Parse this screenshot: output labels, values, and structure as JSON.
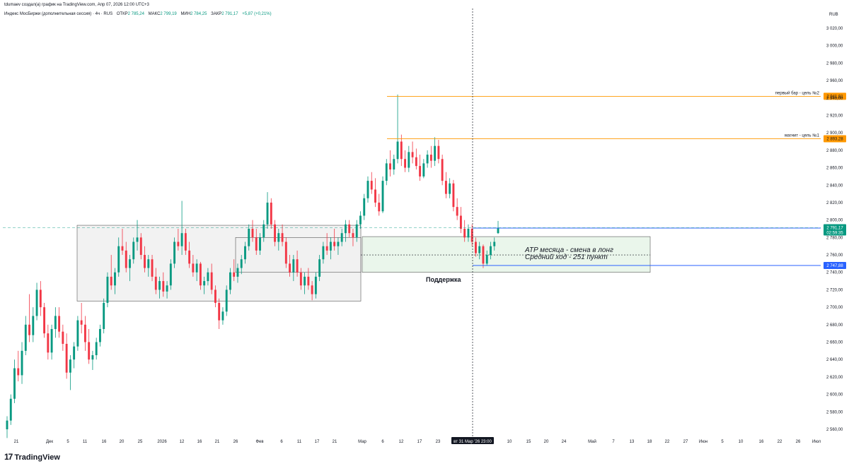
{
  "header": {
    "credit": "tdumaev создал(а) график на TradingView.com, Апр 07, 2026 12:00 UTC+3",
    "instrument": "Индекс МосБиржи (дополнительная сессия) · 4ч · RUS",
    "open_label": "ОТКР",
    "open_value": "2 785,24",
    "high_label": "МАКС",
    "high_value": "2 799,19",
    "low_label": "МИН",
    "low_value": "2 784,25",
    "close_label": "ЗАКР",
    "close_value": "2 791,17",
    "change": "+5,87 (+0,21%)"
  },
  "branding": {
    "logo_mark": "17",
    "logo_text": "TradingView"
  },
  "colors": {
    "up": "#089981",
    "down": "#f23645",
    "orange": "#ff9800",
    "blue": "#2962ff",
    "gray_zone": "#f0f0f0",
    "green_zone": "#e8f5e9",
    "price_line": "#089981"
  },
  "chart_data": {
    "type": "candlestick",
    "currency": "RUB",
    "ylim": [
      2550,
      3040
    ],
    "y_ticks": [
      "2 560,00",
      "2 580,00",
      "2 600,00",
      "2 620,00",
      "2 640,00",
      "2 660,00",
      "2 680,00",
      "2 700,00",
      "2 720,00",
      "2 740,00",
      "2 760,00",
      "2 780,00",
      "2 800,00",
      "2 820,00",
      "2 840,00",
      "2 860,00",
      "2 880,00",
      "2 900,00",
      "2 920,00",
      "2 940,00",
      "2 960,00",
      "2 980,00",
      "3 000,00",
      "3 020,00"
    ],
    "x_ticks": [
      "21",
      "Дек",
      "5",
      "11",
      "16",
      "20",
      "25",
      "2026",
      "12",
      "16",
      "21",
      "26",
      "Фев",
      "6",
      "11",
      "17",
      "21",
      "Мар",
      "6",
      "12",
      "17",
      "23",
      "10",
      "15",
      "20",
      "24",
      "Май",
      "7",
      "13",
      "18",
      "22",
      "27",
      "Июн",
      "5",
      "10",
      "16",
      "22",
      "26",
      "Июл"
    ],
    "crosshair_label": "вт 31 Мар '26  23:00",
    "horizontal_levels": [
      {
        "label": "первый бар - цель №2",
        "value": 2941.91,
        "value_text": "2 941,91",
        "color": "orange"
      },
      {
        "label": "магнит - цель №1",
        "value": 2893.28,
        "value_text": "2 893,28",
        "color": "orange"
      },
      {
        "label": "",
        "value": 2790.82,
        "value_text": "2 790,82",
        "color": "blue"
      },
      {
        "label": "",
        "value": 2747.88,
        "value_text": "2 747,88",
        "color": "blue"
      }
    ],
    "last_price": {
      "value": 2791.17,
      "value_text": "2 791,17",
      "countdown": "02:59:35"
    },
    "zones": [
      {
        "kind": "gray",
        "from_x": "11",
        "to_x": "Мар",
        "from_y": 2707,
        "to_y": 2794
      },
      {
        "kind": "gray",
        "from_x": "26",
        "to_x": "Мар",
        "from_y": 2740,
        "to_y": 2780
      },
      {
        "kind": "green",
        "from_x": "Мар",
        "to_x": "18",
        "from_y": 2740,
        "to_y": 2781
      }
    ],
    "annotations": [
      "ATP месяца - смена в лонг",
      "Средний ход - 251 пункт",
      "Поддержка"
    ],
    "candles_ohlc": [
      [
        2560,
        2575,
        2550,
        2570
      ],
      [
        2570,
        2600,
        2565,
        2595
      ],
      [
        2595,
        2640,
        2590,
        2630
      ],
      [
        2630,
        2650,
        2615,
        2622
      ],
      [
        2622,
        2660,
        2612,
        2650
      ],
      [
        2650,
        2690,
        2645,
        2680
      ],
      [
        2680,
        2715,
        2660,
        2668
      ],
      [
        2668,
        2700,
        2660,
        2690
      ],
      [
        2690,
        2728,
        2685,
        2720
      ],
      [
        2720,
        2730,
        2690,
        2700
      ],
      [
        2700,
        2705,
        2665,
        2670
      ],
      [
        2670,
        2680,
        2640,
        2648
      ],
      [
        2648,
        2680,
        2640,
        2675
      ],
      [
        2675,
        2700,
        2665,
        2690
      ],
      [
        2690,
        2700,
        2665,
        2672
      ],
      [
        2672,
        2680,
        2650,
        2658
      ],
      [
        2658,
        2670,
        2618,
        2625
      ],
      [
        2625,
        2645,
        2605,
        2640
      ],
      [
        2640,
        2660,
        2630,
        2655
      ],
      [
        2655,
        2690,
        2650,
        2685
      ],
      [
        2685,
        2705,
        2670,
        2680
      ],
      [
        2680,
        2690,
        2650,
        2660
      ],
      [
        2660,
        2675,
        2635,
        2640
      ],
      [
        2640,
        2650,
        2628,
        2645
      ],
      [
        2645,
        2665,
        2640,
        2660
      ],
      [
        2660,
        2680,
        2655,
        2675
      ],
      [
        2675,
        2710,
        2670,
        2705
      ],
      [
        2705,
        2740,
        2700,
        2735
      ],
      [
        2735,
        2760,
        2720,
        2725
      ],
      [
        2725,
        2745,
        2715,
        2740
      ],
      [
        2740,
        2780,
        2735,
        2770
      ],
      [
        2770,
        2790,
        2760,
        2765
      ],
      [
        2765,
        2775,
        2740,
        2745
      ],
      [
        2745,
        2760,
        2730,
        2755
      ],
      [
        2755,
        2780,
        2750,
        2775
      ],
      [
        2775,
        2800,
        2765,
        2780
      ],
      [
        2780,
        2785,
        2755,
        2760
      ],
      [
        2760,
        2770,
        2740,
        2745
      ],
      [
        2745,
        2760,
        2735,
        2755
      ],
      [
        2755,
        2760,
        2730,
        2735
      ],
      [
        2735,
        2745,
        2715,
        2720
      ],
      [
        2720,
        2735,
        2710,
        2730
      ],
      [
        2730,
        2740,
        2712,
        2718
      ],
      [
        2718,
        2730,
        2710,
        2725
      ],
      [
        2725,
        2755,
        2720,
        2750
      ],
      [
        2750,
        2780,
        2745,
        2775
      ],
      [
        2775,
        2790,
        2765,
        2770
      ],
      [
        2770,
        2822,
        2760,
        2785
      ],
      [
        2785,
        2790,
        2760,
        2765
      ],
      [
        2765,
        2775,
        2745,
        2750
      ],
      [
        2750,
        2760,
        2735,
        2740
      ],
      [
        2740,
        2755,
        2730,
        2750
      ],
      [
        2750,
        2752,
        2720,
        2725
      ],
      [
        2725,
        2735,
        2715,
        2730
      ],
      [
        2730,
        2745,
        2725,
        2740
      ],
      [
        2740,
        2750,
        2715,
        2720
      ],
      [
        2720,
        2725,
        2700,
        2705
      ],
      [
        2705,
        2710,
        2675,
        2685
      ],
      [
        2685,
        2700,
        2680,
        2695
      ],
      [
        2695,
        2725,
        2690,
        2720
      ],
      [
        2720,
        2745,
        2715,
        2740
      ],
      [
        2740,
        2755,
        2730,
        2735
      ],
      [
        2735,
        2750,
        2728,
        2745
      ],
      [
        2745,
        2760,
        2738,
        2755
      ],
      [
        2755,
        2775,
        2750,
        2770
      ],
      [
        2770,
        2795,
        2765,
        2790
      ],
      [
        2790,
        2800,
        2775,
        2780
      ],
      [
        2780,
        2790,
        2760,
        2765
      ],
      [
        2765,
        2785,
        2760,
        2780
      ],
      [
        2780,
        2800,
        2775,
        2795
      ],
      [
        2795,
        2832,
        2790,
        2820
      ],
      [
        2820,
        2825,
        2790,
        2795
      ],
      [
        2795,
        2800,
        2770,
        2775
      ],
      [
        2775,
        2790,
        2765,
        2785
      ],
      [
        2785,
        2795,
        2770,
        2775
      ],
      [
        2775,
        2780,
        2745,
        2750
      ],
      [
        2750,
        2760,
        2735,
        2740
      ],
      [
        2740,
        2760,
        2730,
        2755
      ],
      [
        2755,
        2765,
        2735,
        2740
      ],
      [
        2740,
        2745,
        2720,
        2725
      ],
      [
        2725,
        2740,
        2715,
        2735
      ],
      [
        2735,
        2745,
        2720,
        2725
      ],
      [
        2725,
        2730,
        2708,
        2715
      ],
      [
        2715,
        2740,
        2710,
        2735
      ],
      [
        2735,
        2760,
        2730,
        2755
      ],
      [
        2755,
        2775,
        2750,
        2770
      ],
      [
        2770,
        2785,
        2760,
        2765
      ],
      [
        2765,
        2780,
        2755,
        2775
      ],
      [
        2775,
        2790,
        2765,
        2770
      ],
      [
        2770,
        2780,
        2760,
        2775
      ],
      [
        2775,
        2790,
        2770,
        2785
      ],
      [
        2785,
        2800,
        2775,
        2795
      ],
      [
        2795,
        2800,
        2780,
        2785
      ],
      [
        2785,
        2790,
        2770,
        2780
      ],
      [
        2780,
        2800,
        2775,
        2795
      ],
      [
        2795,
        2810,
        2790,
        2805
      ],
      [
        2805,
        2830,
        2800,
        2825
      ],
      [
        2825,
        2850,
        2820,
        2845
      ],
      [
        2845,
        2855,
        2830,
        2835
      ],
      [
        2835,
        2848,
        2815,
        2820
      ],
      [
        2820,
        2830,
        2805,
        2810
      ],
      [
        2810,
        2850,
        2808,
        2845
      ],
      [
        2845,
        2870,
        2840,
        2865
      ],
      [
        2865,
        2880,
        2850,
        2858
      ],
      [
        2858,
        2875,
        2852,
        2870
      ],
      [
        2870,
        2944,
        2865,
        2890
      ],
      [
        2890,
        2898,
        2862,
        2870
      ],
      [
        2870,
        2880,
        2855,
        2860
      ],
      [
        2860,
        2885,
        2855,
        2878
      ],
      [
        2878,
        2890,
        2865,
        2872
      ],
      [
        2872,
        2882,
        2858,
        2862
      ],
      [
        2862,
        2875,
        2845,
        2850
      ],
      [
        2850,
        2870,
        2848,
        2865
      ],
      [
        2865,
        2880,
        2860,
        2875
      ],
      [
        2875,
        2885,
        2860,
        2868
      ],
      [
        2868,
        2895,
        2862,
        2885
      ],
      [
        2885,
        2892,
        2865,
        2870
      ],
      [
        2870,
        2875,
        2840,
        2845
      ],
      [
        2845,
        2855,
        2825,
        2830
      ],
      [
        2830,
        2848,
        2825,
        2842
      ],
      [
        2842,
        2846,
        2810,
        2815
      ],
      [
        2815,
        2825,
        2800,
        2805
      ],
      [
        2805,
        2815,
        2785,
        2790
      ],
      [
        2790,
        2800,
        2775,
        2780
      ],
      [
        2780,
        2795,
        2775,
        2790
      ],
      [
        2790,
        2795,
        2770,
        2775
      ],
      [
        2775,
        2780,
        2758,
        2762
      ],
      [
        2762,
        2775,
        2755,
        2770
      ],
      [
        2770,
        2772,
        2745,
        2750
      ],
      [
        2750,
        2765,
        2748,
        2760
      ],
      [
        2760,
        2775,
        2755,
        2770
      ],
      [
        2770,
        2780,
        2765,
        2775
      ],
      [
        2785,
        2799,
        2784,
        2791
      ]
    ]
  }
}
